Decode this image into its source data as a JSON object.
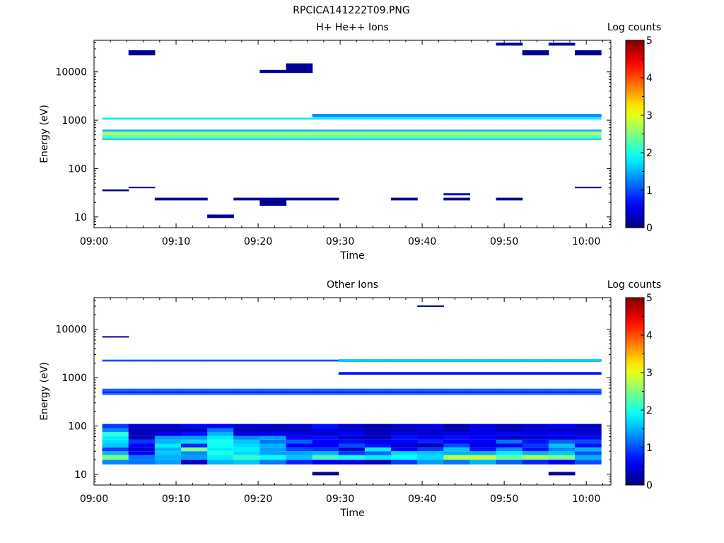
{
  "figure_title": "RPCICA141222T09.PNG",
  "chart_data": [
    {
      "type": "heatmap",
      "title": "H+ He++ Ions",
      "xlabel": "Time",
      "ylabel": "Energy (eV)",
      "yscale": "log",
      "ylim": [
        6,
        45000
      ],
      "xlim": [
        "09:00",
        "10:03"
      ],
      "x_ticks": [
        "09:00",
        "09:10",
        "09:20",
        "09:30",
        "09:40",
        "09:50",
        "10:00"
      ],
      "y_ticks": [
        "10",
        "100",
        "1000",
        "10000"
      ],
      "colorbar": {
        "label": "Log counts",
        "range": [
          0,
          5
        ],
        "ticks": [
          "0",
          "1",
          "2",
          "3",
          "4",
          "5"
        ],
        "colormap": "jet"
      },
      "bins": {
        "time_start": "09:01",
        "time_step_minutes": 3.2,
        "columns": 19
      },
      "bands": [
        {
          "energy_min": 1030,
          "energy_max": 1130,
          "log_counts": 1.8,
          "columns": "all"
        },
        {
          "energy_min": 580,
          "energy_max": 640,
          "log_counts": 1.5,
          "columns": "all"
        },
        {
          "energy_min": 510,
          "energy_max": 570,
          "log_counts": 2.7,
          "columns": "all"
        },
        {
          "energy_min": 460,
          "energy_max": 505,
          "log_counts": 2.4,
          "columns": "all"
        },
        {
          "energy_min": 420,
          "energy_max": 458,
          "log_counts": 2.2,
          "columns": "all"
        },
        {
          "energy_min": 390,
          "energy_max": 418,
          "log_counts": 1.6,
          "columns": "all"
        },
        {
          "energy_min": 1150,
          "energy_max": 1350,
          "log_counts": 1.3,
          "columns": [
            8,
            9,
            10,
            11,
            12,
            13,
            14,
            15,
            16,
            17,
            18
          ]
        },
        {
          "energy_min": 9.5,
          "energy_max": 11.2,
          "log_counts": 0.1,
          "columns": [
            4
          ]
        },
        {
          "energy_min": 22,
          "energy_max": 25,
          "log_counts": 0.1,
          "columns": [
            2,
            3,
            5,
            7,
            8,
            11,
            13,
            15
          ]
        },
        {
          "energy_min": 17,
          "energy_max": 25,
          "log_counts": 0.1,
          "columns": [
            6
          ]
        },
        {
          "energy_min": 28,
          "energy_max": 31,
          "log_counts": 0.6,
          "columns": [
            13
          ]
        },
        {
          "energy_min": 34,
          "energy_max": 37,
          "log_counts": 0.1,
          "columns": [
            0
          ]
        },
        {
          "energy_min": 40,
          "energy_max": 42,
          "log_counts": 0.1,
          "columns": [
            1,
            18
          ]
        },
        {
          "energy_min": 9500,
          "energy_max": 15000,
          "log_counts": 0.1,
          "columns": [
            7
          ]
        },
        {
          "energy_min": 9500,
          "energy_max": 11000,
          "log_counts": 0.1,
          "columns": [
            6
          ]
        },
        {
          "energy_min": 22000,
          "energy_max": 28000,
          "log_counts": 0.1,
          "columns": [
            1,
            16,
            18
          ]
        },
        {
          "energy_min": 35000,
          "energy_max": 40000,
          "log_counts": 0.1,
          "columns": [
            15,
            17
          ]
        }
      ]
    },
    {
      "type": "heatmap",
      "title": "Other Ions",
      "xlabel": "Time",
      "ylabel": "Energy (eV)",
      "yscale": "log",
      "ylim": [
        6,
        45000
      ],
      "xlim": [
        "09:00",
        "10:03"
      ],
      "x_ticks": [
        "09:00",
        "09:10",
        "09:20",
        "09:30",
        "09:40",
        "09:50",
        "10:00"
      ],
      "y_ticks": [
        "10",
        "100",
        "1000",
        "10000"
      ],
      "colorbar": {
        "label": "Log counts",
        "range": [
          0,
          5
        ],
        "ticks": [
          "0",
          "1",
          "2",
          "3",
          "4",
          "5"
        ],
        "colormap": "jet"
      },
      "bins": {
        "time_start": "09:01",
        "time_step_minutes": 3.2,
        "columns": 19
      },
      "bands": [
        {
          "energy_min": 2150,
          "energy_max": 2350,
          "log_counts": 1.0,
          "columns": "all"
        },
        {
          "energy_min": 2100,
          "energy_max": 2400,
          "log_counts": 1.6,
          "columns": [
            9,
            10,
            11,
            12,
            13,
            14,
            15,
            16,
            17,
            18
          ]
        },
        {
          "energy_min": 1150,
          "energy_max": 1300,
          "log_counts": 0.7,
          "columns": [
            9,
            10,
            11,
            12,
            13,
            14,
            15,
            16,
            17,
            18
          ]
        },
        {
          "energy_min": 530,
          "energy_max": 590,
          "log_counts": 1.1,
          "columns": "all"
        },
        {
          "energy_min": 480,
          "energy_max": 525,
          "log_counts": 0.7,
          "columns": "all"
        },
        {
          "energy_min": 440,
          "energy_max": 475,
          "log_counts": 1.0,
          "columns": "all"
        },
        {
          "energy_min": 9.5,
          "energy_max": 11.2,
          "log_counts": 0.1,
          "columns": [
            8,
            17
          ]
        },
        {
          "energy_min": 6800,
          "energy_max": 7200,
          "log_counts": 0.1,
          "columns": [
            0
          ]
        },
        {
          "energy_min": 29000,
          "energy_max": 31000,
          "log_counts": 0.1,
          "columns": [
            12
          ]
        }
      ],
      "low_energy_blocks": {
        "energy_edges": [
          16,
          20,
          25,
          30,
          36,
          43,
          52,
          62,
          75,
          90,
          110
        ],
        "log_counts_by_row": [
          [
            1.3,
            1.2,
            1.4,
            0.3,
            1.5,
            1.6,
            1.2,
            0.8,
            0.6,
            0.5,
            0.3,
            0.9,
            1.4,
            1.2,
            1.5,
            1.1,
            0.8,
            0.6,
            1.0
          ],
          [
            2.5,
            1.2,
            1.5,
            1.4,
            1.8,
            2.1,
            1.9,
            1.6,
            2.2,
            2.0,
            1.8,
            1.9,
            1.7,
            2.8,
            2.8,
            2.4,
            2.7,
            2.5,
            1.5
          ],
          [
            1.5,
            0.6,
            1.6,
            1.3,
            2.0,
            1.7,
            1.4,
            1.4,
            1.5,
            0.9,
            1.1,
            1.7,
            1.6,
            1.5,
            1.5,
            1.8,
            1.5,
            1.6,
            1.0
          ],
          [
            0.9,
            0.4,
            1.5,
            2.5,
            1.8,
            1.8,
            1.4,
            1.0,
            0.9,
            0.4,
            1.8,
            0.6,
            0.9,
            1.6,
            0.7,
            1.3,
            0.7,
            1.3,
            1.5
          ],
          [
            1.6,
            0.6,
            1.8,
            0.8,
            1.9,
            1.7,
            1.5,
            0.6,
            0.6,
            1.0,
            0.7,
            0.4,
            0.3,
            1.0,
            0.5,
            0.6,
            0.9,
            1.6,
            0.7
          ],
          [
            1.7,
            0.9,
            1.5,
            1.7,
            2.0,
            1.6,
            1.2,
            1.1,
            0.6,
            0.7,
            0.5,
            0.6,
            0.8,
            0.6,
            0.6,
            1.2,
            0.7,
            1.1,
            1.0
          ],
          [
            1.8,
            0.3,
            1.4,
            1.4,
            1.8,
            1.3,
            1.4,
            0.6,
            0.7,
            0.3,
            0.3,
            0.7,
            0.6,
            0.7,
            0.6,
            0.3,
            0.4,
            0.4,
            0.6
          ],
          [
            2.1,
            0.3,
            0.5,
            0.7,
            1.5,
            0.5,
            0.6,
            0.5,
            0.4,
            0.6,
            0.3,
            0.5,
            0.4,
            0.5,
            0.5,
            0.6,
            0.5,
            0.6,
            0.4
          ],
          [
            1.3,
            0.3,
            0.3,
            0.3,
            1.2,
            0.3,
            0.3,
            0.3,
            0.5,
            0.4,
            0.3,
            0.3,
            0.4,
            0.3,
            0.5,
            0.3,
            0.4,
            0.3,
            0.4
          ],
          [
            0.9,
            0.4,
            0.4,
            0.6,
            0.6,
            0.4,
            0.3,
            0.4,
            0.7,
            0.4,
            0.2,
            0.4,
            0.5,
            0.2,
            0.5,
            0.3,
            0.4,
            0.6,
            0.3
          ]
        ]
      }
    }
  ]
}
